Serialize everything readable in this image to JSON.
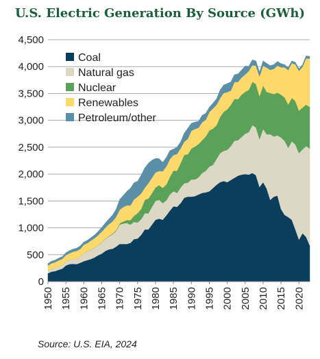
{
  "chart_data": {
    "type": "area",
    "stacked": true,
    "title": "U.S. Electric Generation By Source (GWh)",
    "source": "Source: U.S. EIA, 2024",
    "xlabel": "",
    "ylabel": "",
    "xlim": [
      1950,
      2023
    ],
    "ylim": [
      0,
      4500
    ],
    "grid": "horizontal",
    "legend_position": "top-left",
    "x_ticks": [
      1950,
      1955,
      1960,
      1965,
      1970,
      1975,
      1980,
      1985,
      1990,
      1995,
      2000,
      2005,
      2010,
      2015,
      2020
    ],
    "y_ticks": [
      0,
      500,
      1000,
      1500,
      2000,
      2500,
      3000,
      3500,
      4000,
      4500
    ],
    "y_tick_labels": [
      "0",
      "500",
      "1,000",
      "1,500",
      "2,000",
      "2,500",
      "3,000",
      "3,500",
      "4,000",
      "4,500"
    ],
    "x": [
      1950,
      1951,
      1952,
      1953,
      1954,
      1955,
      1956,
      1957,
      1958,
      1959,
      1960,
      1961,
      1962,
      1963,
      1964,
      1965,
      1966,
      1967,
      1968,
      1969,
      1970,
      1971,
      1972,
      1973,
      1974,
      1975,
      1976,
      1977,
      1978,
      1979,
      1980,
      1981,
      1982,
      1983,
      1984,
      1985,
      1986,
      1987,
      1988,
      1989,
      1990,
      1991,
      1992,
      1993,
      1994,
      1995,
      1996,
      1997,
      1998,
      1999,
      2000,
      2001,
      2002,
      2003,
      2004,
      2005,
      2006,
      2007,
      2008,
      2009,
      2010,
      2011,
      2012,
      2013,
      2014,
      2015,
      2016,
      2017,
      2018,
      2019,
      2020,
      2021,
      2022,
      2023
    ],
    "series": [
      {
        "name": "Coal",
        "color": "#0b3d5c",
        "values": [
          155,
          185,
          195,
          220,
          240,
          300,
          325,
          330,
          325,
          350,
          380,
          400,
          420,
          450,
          490,
          520,
          570,
          600,
          610,
          650,
          700,
          700,
          700,
          720,
          790,
          800,
          870,
          970,
          970,
          1060,
          1150,
          1170,
          1150,
          1230,
          1320,
          1400,
          1390,
          1460,
          1560,
          1580,
          1580,
          1590,
          1620,
          1650,
          1660,
          1680,
          1740,
          1800,
          1850,
          1870,
          1850,
          1890,
          1930,
          1970,
          1990,
          2000,
          1990,
          2020,
          1980,
          1760,
          1850,
          1730,
          1520,
          1580,
          1600,
          1350,
          1240,
          1200,
          1150,
          970,
          780,
          900,
          830,
          675
        ]
      },
      {
        "name": "Natural gas",
        "color": "#ddd8c6",
        "values": [
          45,
          50,
          55,
          65,
          70,
          75,
          80,
          95,
          100,
          110,
          155,
          160,
          170,
          180,
          190,
          210,
          225,
          240,
          270,
          290,
          360,
          380,
          390,
          340,
          320,
          300,
          290,
          300,
          300,
          330,
          350,
          350,
          310,
          280,
          300,
          280,
          260,
          290,
          270,
          260,
          320,
          310,
          320,
          370,
          400,
          460,
          430,
          480,
          540,
          560,
          600,
          630,
          690,
          660,
          700,
          750,
          790,
          890,
          890,
          890,
          990,
          1010,
          1220,
          1120,
          1120,
          1330,
          1380,
          1290,
          1460,
          1580,
          1610,
          1560,
          1690,
          1800
        ]
      },
      {
        "name": "Nuclear",
        "color": "#5aa25a",
        "values": [
          0,
          0,
          0,
          0,
          0,
          0,
          0,
          0,
          0,
          0,
          1,
          2,
          3,
          3,
          3,
          4,
          6,
          8,
          13,
          14,
          22,
          38,
          54,
          83,
          114,
          173,
          191,
          251,
          276,
          255,
          251,
          273,
          283,
          294,
          328,
          384,
          414,
          455,
          527,
          529,
          577,
          613,
          619,
          610,
          640,
          673,
          675,
          629,
          673,
          728,
          754,
          769,
          780,
          764,
          788,
          782,
          787,
          806,
          806,
          799,
          807,
          790,
          769,
          789,
          797,
          797,
          806,
          805,
          807,
          809,
          790,
          778,
          772,
          775
        ]
      },
      {
        "name": "Renewables",
        "color": "#fdd86b",
        "values": [
          100,
          105,
          110,
          110,
          112,
          116,
          122,
          130,
          145,
          145,
          150,
          155,
          170,
          175,
          180,
          195,
          200,
          220,
          225,
          250,
          255,
          270,
          275,
          275,
          305,
          305,
          290,
          225,
          285,
          285,
          280,
          265,
          310,
          335,
          330,
          290,
          310,
          275,
          245,
          285,
          330,
          325,
          305,
          335,
          310,
          340,
          375,
          380,
          350,
          350,
          320,
          265,
          310,
          320,
          320,
          320,
          350,
          310,
          340,
          370,
          370,
          450,
          430,
          470,
          500,
          510,
          560,
          640,
          650,
          680,
          740,
          760,
          860,
          900
        ]
      },
      {
        "name": "Petroleum/other",
        "color": "#5b8fa8",
        "values": [
          35,
          40,
          40,
          42,
          44,
          46,
          48,
          50,
          52,
          60,
          50,
          52,
          56,
          60,
          70,
          80,
          90,
          100,
          120,
          140,
          190,
          215,
          260,
          320,
          310,
          290,
          340,
          370,
          370,
          330,
          260,
          230,
          165,
          170,
          160,
          110,
          130,
          120,
          160,
          200,
          140,
          130,
          120,
          130,
          120,
          90,
          100,
          110,
          150,
          150,
          160,
          160,
          140,
          150,
          140,
          160,
          90,
          100,
          90,
          80,
          90,
          80,
          80,
          80,
          80,
          70,
          50,
          50,
          40,
          40,
          40,
          40,
          50,
          40
        ]
      }
    ]
  }
}
